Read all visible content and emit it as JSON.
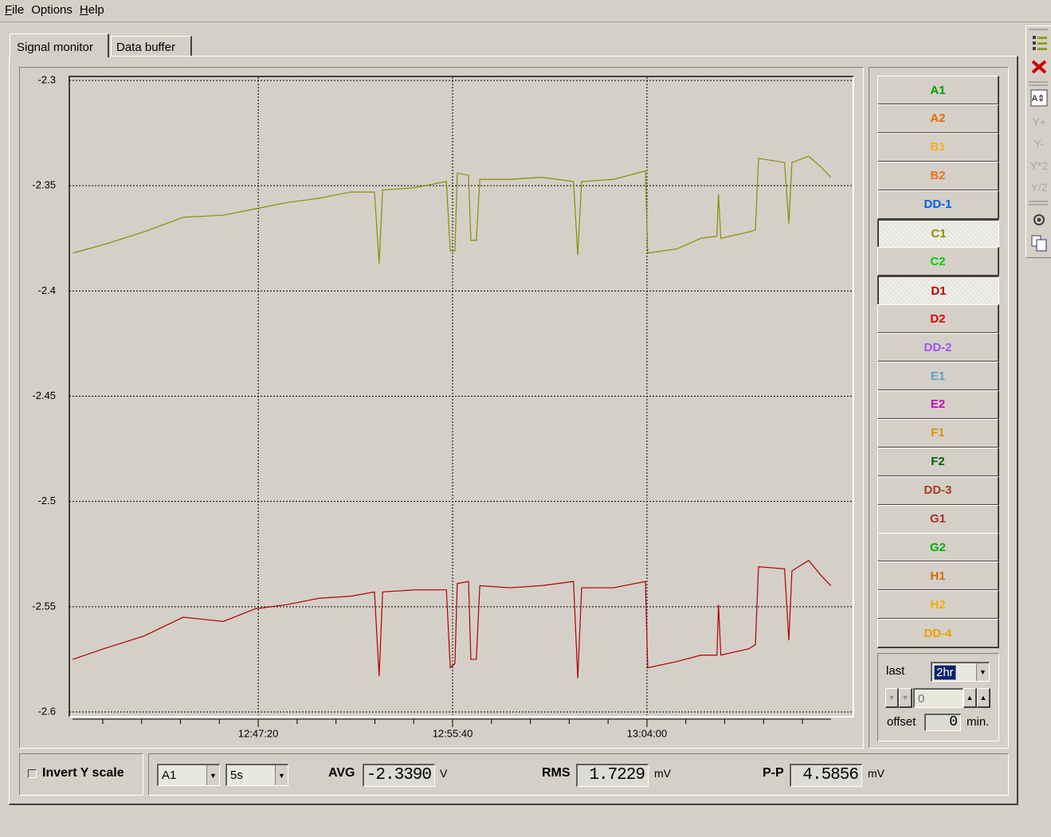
{
  "ui": {
    "menu": [
      "File",
      "Options",
      "Help"
    ],
    "tabs": [
      "Signal monitor",
      "Data buffer"
    ],
    "toolbar": [
      "Y+",
      "Y-",
      "Y*2",
      "Y/2"
    ],
    "channels": [
      {
        "name": "A1",
        "color": "#00a000",
        "pressed": false
      },
      {
        "name": "A2",
        "color": "#e07000",
        "pressed": false
      },
      {
        "name": "B1",
        "color": "#f0b020",
        "pressed": false
      },
      {
        "name": "B2",
        "color": "#f07020",
        "pressed": false
      },
      {
        "name": "DD-1",
        "color": "#0060f0",
        "pressed": false
      },
      {
        "name": "C1",
        "color": "#909000",
        "pressed": true
      },
      {
        "name": "C2",
        "color": "#00d000",
        "pressed": false
      },
      {
        "name": "D1",
        "color": "#c00000",
        "pressed": true
      },
      {
        "name": "D2",
        "color": "#e00000",
        "pressed": false
      },
      {
        "name": "DD-2",
        "color": "#a050f0",
        "pressed": false
      },
      {
        "name": "E1",
        "color": "#60a0d0",
        "pressed": false
      },
      {
        "name": "E2",
        "color": "#d000c0",
        "pressed": false
      },
      {
        "name": "F1",
        "color": "#e09000",
        "pressed": false
      },
      {
        "name": "F2",
        "color": "#006000",
        "pressed": false
      },
      {
        "name": "DD-3",
        "color": "#a04020",
        "pressed": false
      },
      {
        "name": "G1",
        "color": "#b03030",
        "pressed": false
      },
      {
        "name": "G2",
        "color": "#00b000",
        "pressed": false
      },
      {
        "name": "H1",
        "color": "#d07000",
        "pressed": false
      },
      {
        "name": "H2",
        "color": "#f0b000",
        "pressed": false
      },
      {
        "name": "DD-4",
        "color": "#f0a000",
        "pressed": false
      }
    ],
    "range": {
      "label": "last",
      "value": "2hr",
      "spin": "0",
      "offset_label": "offset",
      "offset": "0",
      "unit": "min."
    },
    "bottom": {
      "invert": "Invert Y scale",
      "channel": "A1",
      "interval": "5s",
      "stats": [
        {
          "label": "AVG",
          "value": "-2.3390",
          "unit": "V"
        },
        {
          "label": "RMS",
          "value": "1.7229",
          "unit": "mV"
        },
        {
          "label": "P-P",
          "value": "4.5856",
          "unit": "mV"
        }
      ]
    }
  },
  "chart_data": {
    "type": "line",
    "x": [
      45563,
      45642,
      45745,
      45847,
      45950,
      46032,
      46114,
      46196,
      46278,
      46339,
      46351,
      46360,
      46442,
      46524,
      46534,
      46546,
      46552,
      46581,
      46587,
      46601,
      46610,
      46687,
      46769,
      46851,
      46862,
      46872,
      46954,
      47036,
      47042,
      47118,
      47179,
      47220,
      47224,
      47230,
      47302,
      47319,
      47327,
      47394,
      47405,
      47413,
      47456,
      47487,
      47513
    ],
    "series": [
      {
        "color": "#8c8c00",
        "values": [
          -2.382,
          -2.378,
          -2.372,
          -2.365,
          -2.364,
          -2.361,
          -2.358,
          -2.356,
          -2.353,
          -2.353,
          -2.387,
          -2.352,
          -2.351,
          -2.348,
          -2.381,
          -2.381,
          -2.344,
          -2.345,
          -2.376,
          -2.376,
          -2.347,
          -2.347,
          -2.346,
          -2.348,
          -2.383,
          -2.348,
          -2.347,
          -2.343,
          -2.382,
          -2.38,
          -2.375,
          -2.374,
          -2.354,
          -2.375,
          -2.372,
          -2.371,
          -2.337,
          -2.339,
          -2.368,
          -2.339,
          -2.336,
          -2.341,
          -2.346
        ]
      },
      {
        "color": "#b00000",
        "values": [
          -2.575,
          -2.57,
          -2.564,
          -2.555,
          -2.557,
          -2.551,
          -2.549,
          -2.546,
          -2.545,
          -2.543,
          -2.583,
          -2.543,
          -2.542,
          -2.542,
          -2.579,
          -2.577,
          -2.539,
          -2.538,
          -2.575,
          -2.575,
          -2.54,
          -2.541,
          -2.54,
          -2.538,
          -2.584,
          -2.541,
          -2.541,
          -2.538,
          -2.579,
          -2.576,
          -2.573,
          -2.573,
          -2.549,
          -2.573,
          -2.57,
          -2.568,
          -2.531,
          -2.532,
          -2.566,
          -2.533,
          -2.528,
          -2.535,
          -2.54
        ]
      }
    ],
    "xlim": [
      45554,
      47569
    ],
    "xticks": [
      {
        "value": 46040,
        "label": "12:47:20"
      },
      {
        "value": 46540,
        "label": "12:55:40"
      },
      {
        "value": 47040,
        "label": "13:04:00"
      }
    ],
    "xminorticks": [
      45640,
      45740,
      45840,
      45940,
      46140,
      46240,
      46340,
      46440,
      46640,
      46740,
      46840,
      46940,
      47140,
      47240,
      47340,
      47440
    ],
    "ylim": [
      -2.6,
      -2.3
    ],
    "yticks": [
      -2.6,
      -2.55,
      -2.5,
      -2.45,
      -2.4,
      -2.35,
      -2.3
    ],
    "grid": true
  }
}
